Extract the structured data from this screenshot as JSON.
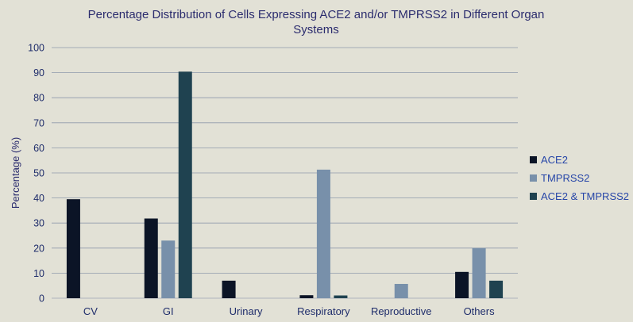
{
  "chart_data": {
    "type": "bar",
    "title": "Percentage Distribution of Cells Expressing ACE2 and/or TMPRSS2 in Different Organ Systems",
    "title_lines": [
      "Percentage Distribution of Cells Expressing ACE2 and/or TMPRSS2 in Different Organ",
      "Systems"
    ],
    "xlabel": "",
    "ylabel": "Percentage (%)",
    "ylim": [
      0,
      100
    ],
    "yticks": [
      0,
      10,
      20,
      30,
      40,
      50,
      60,
      70,
      80,
      90,
      100
    ],
    "grid": true,
    "legend_position": "right",
    "categories": [
      "CV",
      "GI",
      "Urinary",
      "Respiratory",
      "Reproductive",
      "Others"
    ],
    "series": [
      {
        "name": "ACE2",
        "color": "#0b1426",
        "values": [
          39.5,
          31.8,
          7.0,
          1.2,
          0,
          10.5
        ]
      },
      {
        "name": "TMPRSS2",
        "color": "#7890aa",
        "values": [
          0,
          23.0,
          0,
          51.3,
          5.7,
          20.0
        ]
      },
      {
        "name": "ACE2 & TMPRSS2",
        "color": "#1f4250",
        "values": [
          0,
          90.4,
          0,
          1.1,
          0,
          7.0
        ]
      }
    ],
    "colors": {
      "background": "#e2e1d6",
      "gridline": "#8f9aab",
      "axis": "#b9bcc4",
      "title": "#2b2c6e",
      "legend_text": "#2746a8"
    }
  }
}
